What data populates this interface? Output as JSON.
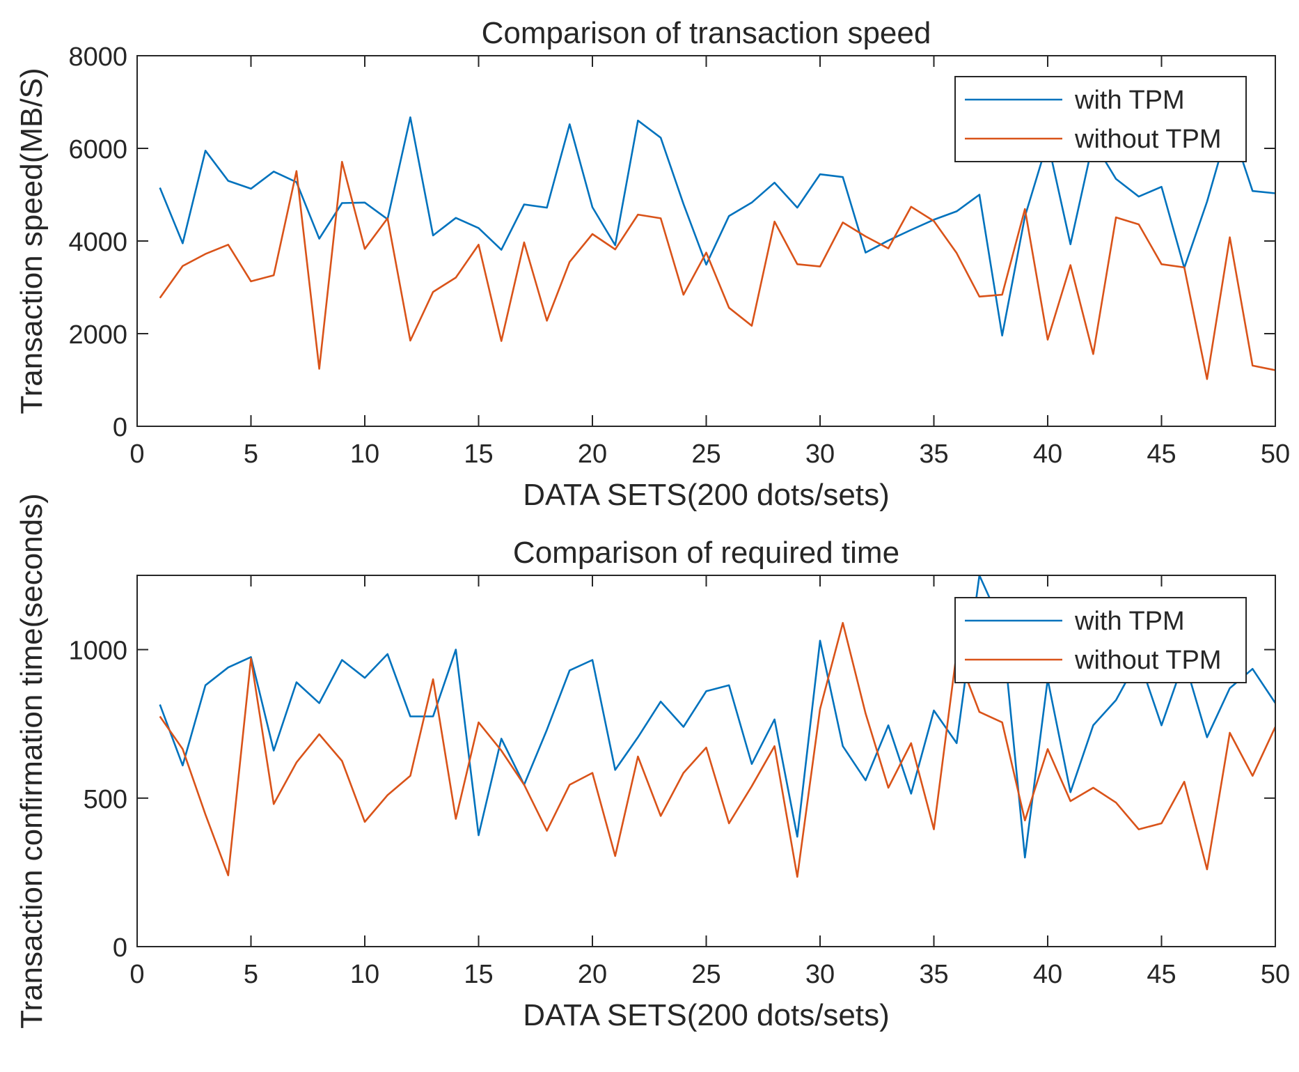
{
  "chart_data": [
    {
      "type": "line",
      "title": "Comparison of transaction speed",
      "xlabel": "DATA SETS(200 dots/sets)",
      "ylabel": "Transaction speed(MB/S)",
      "xlim": [
        0,
        50
      ],
      "ylim": [
        0,
        8000
      ],
      "xticks": [
        0,
        5,
        10,
        15,
        20,
        25,
        30,
        35,
        40,
        45,
        50
      ],
      "yticks": [
        0,
        2000,
        4000,
        6000,
        8000
      ],
      "grid": false,
      "legend_position": "top-right",
      "x": [
        1,
        2,
        3,
        4,
        5,
        6,
        7,
        8,
        9,
        10,
        11,
        12,
        13,
        14,
        15,
        16,
        17,
        18,
        19,
        20,
        21,
        22,
        23,
        24,
        25,
        26,
        27,
        28,
        29,
        30,
        31,
        32,
        33,
        34,
        35,
        36,
        37,
        38,
        39,
        40,
        41,
        42,
        43,
        44,
        45,
        46,
        47,
        48,
        49,
        50
      ],
      "series": [
        {
          "name": "with TPM",
          "color": "#0072BD",
          "values": [
            5150,
            3950,
            5950,
            5300,
            5130,
            5500,
            5270,
            4050,
            4820,
            4830,
            4470,
            6670,
            4120,
            4500,
            4280,
            3810,
            4790,
            4720,
            6520,
            4730,
            3910,
            6600,
            6230,
            4800,
            3490,
            4540,
            4830,
            5260,
            4720,
            5440,
            5380,
            3750,
            4010,
            4240,
            4460,
            4640,
            5000,
            1960,
            4530,
            6150,
            3930,
            6150,
            5340,
            4960,
            5170,
            3420,
            4850,
            6560,
            5080,
            5030
          ]
        },
        {
          "name": "without TPM",
          "color": "#D95319",
          "values": [
            2770,
            3460,
            3720,
            3920,
            3130,
            3260,
            5510,
            1240,
            5710,
            3830,
            4490,
            1850,
            2900,
            3210,
            3920,
            1840,
            3970,
            2280,
            3550,
            4150,
            3820,
            4570,
            4490,
            2840,
            3750,
            2560,
            2170,
            4420,
            3500,
            3450,
            4400,
            4100,
            3840,
            4740,
            4430,
            3740,
            2800,
            2840,
            4690,
            1870,
            3480,
            1560,
            4510,
            4360,
            3500,
            3430,
            1020,
            4080,
            1310,
            1210
          ]
        }
      ]
    },
    {
      "type": "line",
      "title": "Comparison of required time",
      "xlabel": "DATA SETS(200 dots/sets)",
      "ylabel": "Transaction confirmation time(seconds)",
      "xlim": [
        0,
        50
      ],
      "ylim": [
        0,
        1250
      ],
      "xticks": [
        0,
        5,
        10,
        15,
        20,
        25,
        30,
        35,
        40,
        45,
        50
      ],
      "yticks": [
        0,
        500,
        1000
      ],
      "grid": false,
      "legend_position": "top-right",
      "x": [
        1,
        2,
        3,
        4,
        5,
        6,
        7,
        8,
        9,
        10,
        11,
        12,
        13,
        14,
        15,
        16,
        17,
        18,
        19,
        20,
        21,
        22,
        23,
        24,
        25,
        26,
        27,
        28,
        29,
        30,
        31,
        32,
        33,
        34,
        35,
        36,
        37,
        38,
        39,
        40,
        41,
        42,
        43,
        44,
        45,
        46,
        47,
        48,
        49,
        50
      ],
      "series": [
        {
          "name": "with TPM",
          "color": "#0072BD",
          "values": [
            815,
            610,
            880,
            940,
            975,
            660,
            890,
            820,
            965,
            905,
            985,
            775,
            775,
            1000,
            375,
            700,
            545,
            730,
            930,
            965,
            595,
            705,
            825,
            740,
            860,
            880,
            615,
            765,
            370,
            1030,
            675,
            560,
            745,
            515,
            795,
            685,
            1250,
            1080,
            300,
            900,
            520,
            745,
            830,
            970,
            745,
            965,
            705,
            870,
            935,
            820
          ]
        },
        {
          "name": "without TPM",
          "color": "#D95319",
          "values": [
            775,
            665,
            445,
            240,
            970,
            480,
            620,
            715,
            625,
            420,
            510,
            575,
            900,
            430,
            755,
            660,
            545,
            390,
            545,
            585,
            305,
            640,
            440,
            585,
            670,
            415,
            540,
            675,
            235,
            800,
            1090,
            785,
            535,
            685,
            395,
            990,
            790,
            755,
            425,
            665,
            490,
            535,
            485,
            395,
            415,
            555,
            260,
            720,
            575,
            740
          ]
        }
      ]
    }
  ]
}
